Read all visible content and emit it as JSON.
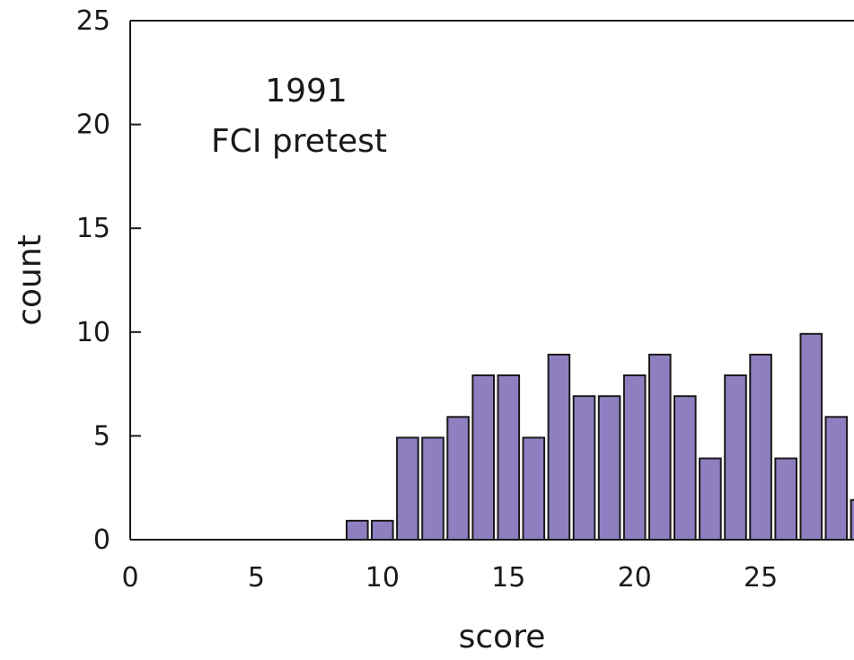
{
  "chart_data": {
    "type": "bar",
    "title": "",
    "annotation": [
      "1991",
      "FCI pretest"
    ],
    "xlabel": "score",
    "ylabel": "count",
    "xlim": [
      0,
      28.7
    ],
    "ylim": [
      0,
      25
    ],
    "x_ticks": [
      "0",
      "5",
      "10",
      "15",
      "20",
      "25"
    ],
    "y_ticks": [
      "0",
      "5",
      "10",
      "15",
      "20",
      "25"
    ],
    "grid": false,
    "legend": "none",
    "series": [
      {
        "x": [
          9,
          10,
          11,
          12,
          13,
          14,
          15,
          16,
          17,
          18,
          19,
          20,
          21,
          22,
          23,
          24,
          25,
          26,
          27,
          28,
          29
        ],
        "values": [
          1,
          1,
          5,
          5,
          6,
          8,
          8,
          5,
          9,
          7,
          7,
          8,
          9,
          7,
          4,
          8,
          9,
          4,
          10,
          6,
          2
        ]
      }
    ],
    "colors": {
      "bar_fill": "#8f7fc0",
      "bar_stroke": "#1a1a1a",
      "axis": "#1a1a1a"
    }
  }
}
